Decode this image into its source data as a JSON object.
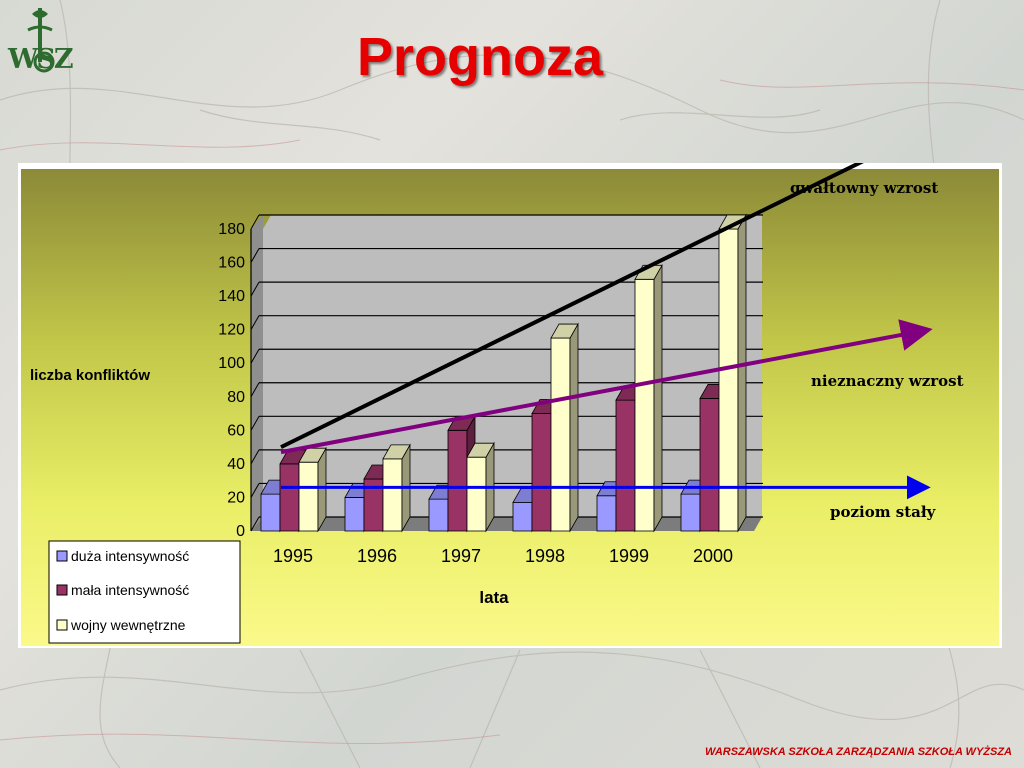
{
  "slide": {
    "title": "Prognoza",
    "logo_text": "WSZ",
    "footer": "WARSZAWSKA SZKOŁA ZARZĄDZANIA SZKOŁA WYŻSZA"
  },
  "annotations": {
    "gwaltowny": "gwałtowny wzrost",
    "nieznaczny": "nieznaczny wzrost",
    "staly": "poziom stały"
  },
  "chart_data": {
    "type": "bar",
    "categories": [
      "1995",
      "1996",
      "1997",
      "1998",
      "1999",
      "2000"
    ],
    "series": [
      {
        "name": "duża intensywność",
        "values": [
          22,
          20,
          19,
          17,
          21,
          22
        ],
        "color": "#9999ff"
      },
      {
        "name": "mała intensywność",
        "values": [
          40,
          31,
          60,
          70,
          78,
          79
        ],
        "color": "#993366"
      },
      {
        "name": "wojny wewnętrzne",
        "values": [
          41,
          43,
          44,
          115,
          150,
          180
        ],
        "color": "#ffffcc"
      }
    ],
    "ylabel": "liczba konfliktów",
    "xlabel": "lata",
    "ylim": [
      0,
      180
    ],
    "yticks": [
      "0",
      "20",
      "40",
      "60",
      "80",
      "100",
      "120",
      "140",
      "160",
      "180"
    ],
    "grid": true,
    "legend": "bottom-left",
    "trend_lines": [
      {
        "label_key": "gwaltowny",
        "color": "#000000",
        "from": [
          "1995",
          50
        ],
        "to": [
          "2000",
          180
        ]
      },
      {
        "label_key": "nieznaczny",
        "color": "#800080",
        "from": [
          "1995",
          47
        ],
        "to": [
          "2000",
          97
        ]
      },
      {
        "label_key": "staly",
        "color": "#0000ee",
        "from": [
          "1995",
          26
        ],
        "to": [
          "2000",
          26
        ]
      }
    ]
  }
}
